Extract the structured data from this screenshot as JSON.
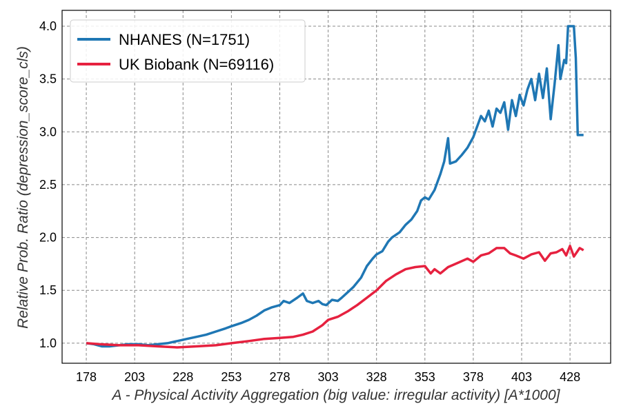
{
  "chart_data": {
    "type": "line",
    "x_label": "A - Physical Activity Aggregation (big value: irregular activity) [A*1000]",
    "y_label": "Relative Prob. Ratio (depression_score_cls)",
    "xlim": [
      165.5,
      449
    ],
    "ylim": [
      0.81,
      4.15
    ],
    "xticks": [
      178,
      203,
      228,
      253,
      278,
      303,
      328,
      353,
      378,
      403,
      428
    ],
    "yticks": [
      {
        "value": 1,
        "label": "1.0"
      },
      {
        "value": 1.5,
        "label": "1.5"
      },
      {
        "value": 2,
        "label": "2.0"
      },
      {
        "value": 2.5,
        "label": "2.5"
      },
      {
        "value": 3,
        "label": "3.0"
      },
      {
        "value": 3.5,
        "label": "3.5"
      },
      {
        "value": 4,
        "label": "4.0"
      }
    ],
    "grid": true,
    "legend": "upper left",
    "series": [
      {
        "name": "NHANES (N=1751)",
        "color": "#1f77b4",
        "x": [
          178,
          182,
          186,
          190,
          195,
          200,
          205,
          210,
          215,
          220,
          225,
          230,
          235,
          240,
          245,
          250,
          253,
          258,
          262,
          266,
          270,
          274,
          278,
          280,
          283,
          287,
          290,
          292,
          295,
          298,
          300,
          302,
          305,
          308,
          310,
          313,
          316,
          320,
          323,
          326,
          328,
          331,
          334,
          336,
          340,
          343,
          346,
          349,
          351,
          353,
          355,
          358,
          361,
          363,
          365,
          366,
          369,
          372,
          375,
          378,
          380,
          382,
          384,
          386,
          388,
          390,
          392,
          394,
          396,
          398,
          400,
          402,
          404,
          406,
          408,
          410,
          412,
          414,
          416,
          418,
          420,
          422,
          423,
          425,
          426,
          427,
          430,
          431,
          432,
          435
        ],
        "values": [
          1.0,
          0.99,
          0.97,
          0.97,
          0.98,
          0.99,
          0.99,
          0.98,
          0.99,
          1.0,
          1.02,
          1.04,
          1.06,
          1.08,
          1.11,
          1.14,
          1.16,
          1.19,
          1.22,
          1.26,
          1.31,
          1.34,
          1.36,
          1.4,
          1.38,
          1.43,
          1.47,
          1.4,
          1.38,
          1.4,
          1.37,
          1.36,
          1.41,
          1.4,
          1.43,
          1.48,
          1.53,
          1.62,
          1.73,
          1.8,
          1.84,
          1.87,
          1.96,
          2.0,
          2.05,
          2.12,
          2.17,
          2.25,
          2.35,
          2.38,
          2.36,
          2.45,
          2.6,
          2.72,
          2.94,
          2.7,
          2.72,
          2.78,
          2.85,
          2.95,
          3.05,
          3.15,
          3.1,
          3.2,
          3.05,
          3.22,
          3.18,
          3.28,
          3.02,
          3.3,
          3.15,
          3.35,
          3.25,
          3.4,
          3.5,
          3.3,
          3.55,
          3.32,
          3.6,
          3.12,
          3.45,
          3.82,
          3.5,
          3.68,
          3.65,
          4.0,
          4.0,
          3.7,
          2.97,
          2.97
        ]
      },
      {
        "name": "UK Biobank (N=69116)",
        "color": "#e6213f",
        "x": [
          178,
          185,
          195,
          205,
          215,
          225,
          235,
          245,
          253,
          262,
          270,
          278,
          285,
          290,
          295,
          300,
          303,
          308,
          313,
          318,
          323,
          328,
          333,
          338,
          343,
          348,
          353,
          356,
          358,
          361,
          365,
          370,
          375,
          378,
          382,
          386,
          390,
          394,
          397,
          400,
          404,
          408,
          412,
          415,
          418,
          421,
          424,
          426,
          428,
          430,
          433,
          435
        ],
        "values": [
          1.0,
          0.99,
          0.98,
          0.98,
          0.97,
          0.96,
          0.97,
          0.98,
          1.0,
          1.02,
          1.04,
          1.05,
          1.06,
          1.08,
          1.11,
          1.17,
          1.22,
          1.25,
          1.3,
          1.36,
          1.43,
          1.5,
          1.59,
          1.65,
          1.7,
          1.72,
          1.73,
          1.66,
          1.7,
          1.66,
          1.72,
          1.76,
          1.8,
          1.77,
          1.83,
          1.85,
          1.9,
          1.9,
          1.85,
          1.83,
          1.8,
          1.84,
          1.86,
          1.78,
          1.85,
          1.86,
          1.89,
          1.83,
          1.92,
          1.82,
          1.9,
          1.88
        ]
      }
    ]
  }
}
